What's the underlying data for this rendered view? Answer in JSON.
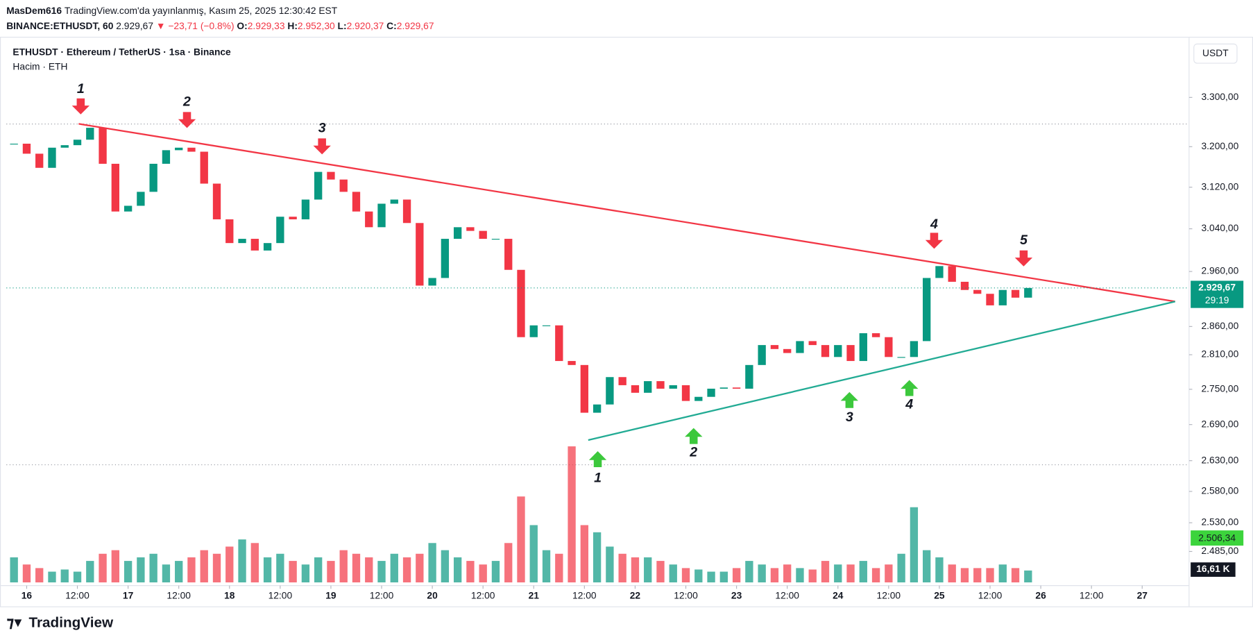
{
  "header": {
    "author": "MasDem616",
    "published": "TradingView.com'da yayınlanmış, Kasım 25, 2025 12:30:42 EST",
    "symbol": "BINANCE:ETHUSDT, 60",
    "last": "2.929,67",
    "change": "▼ −23,71 (−0.8%)",
    "o_label": "O:",
    "o": "2.929,33",
    "h_label": "H:",
    "h": "2.952,30",
    "l_label": "L:",
    "l": "2.920,37",
    "c_label": "C:",
    "c": "2.929,67"
  },
  "chart_data": {
    "type": "candlestick",
    "title": "ETHUSDT · Ethereum / TetherUS · 1sa · Binance",
    "subtitle": "Hacim · ETH",
    "currency": "USDT",
    "close": [
      3206,
      3186,
      3158,
      3198,
      3203,
      3214,
      3238,
      3166,
      3073,
      3084,
      3111,
      3166,
      3193,
      3198,
      3190,
      3127,
      3058,
      3013,
      3021,
      2999,
      3013,
      3063,
      3058,
      3096,
      3150,
      3135,
      3111,
      3073,
      3043,
      3088,
      3096,
      3051,
      2934,
      2948,
      3021,
      3043,
      3036,
      3021,
      3021,
      2963,
      2841,
      2862,
      2862,
      2799,
      2792,
      2710,
      2724,
      2771,
      2757,
      2744,
      2764,
      2751,
      2757,
      2730,
      2737,
      2751,
      2753,
      2751,
      2792,
      2827,
      2820,
      2813,
      2834,
      2827,
      2806,
      2827,
      2799,
      2848,
      2841,
      2806,
      2806,
      2834,
      2948,
      2970,
      2941,
      2926,
      2919,
      2898,
      2926,
      2912,
      2929.67
    ],
    "volume": [
      35,
      25,
      20,
      15,
      18,
      15,
      30,
      40,
      45,
      30,
      35,
      40,
      25,
      30,
      35,
      45,
      40,
      50,
      60,
      55,
      35,
      40,
      30,
      25,
      35,
      30,
      45,
      40,
      35,
      30,
      40,
      35,
      40,
      55,
      45,
      35,
      30,
      25,
      30,
      55,
      120,
      80,
      45,
      40,
      190,
      80,
      70,
      50,
      40,
      35,
      35,
      30,
      25,
      20,
      18,
      15,
      15,
      20,
      30,
      25,
      20,
      25,
      20,
      18,
      30,
      25,
      25,
      30,
      20,
      25,
      40,
      105,
      45,
      35,
      25,
      20,
      20,
      20,
      25,
      20,
      16.61
    ],
    "up_color": "#089981",
    "down_color": "#f23645",
    "log_scale": true,
    "ylim": [
      2435,
      3412
    ],
    "yticks": [
      {
        "value": 3300,
        "label": "3.300,00"
      },
      {
        "value": 3200,
        "label": "3.200,00"
      },
      {
        "value": 3120,
        "label": "3.120,00"
      },
      {
        "value": 3040,
        "label": "3.040,00"
      },
      {
        "value": 2960,
        "label": "2.960,00"
      },
      {
        "value": 2860,
        "label": "2.860,00"
      },
      {
        "value": 2810,
        "label": "2.810,00"
      },
      {
        "value": 2750,
        "label": "2.750,00"
      },
      {
        "value": 2690,
        "label": "2.690,00"
      },
      {
        "value": 2630,
        "label": "2.630,00"
      },
      {
        "value": 2580,
        "label": "2.580,00"
      },
      {
        "value": 2530,
        "label": "2.530,00"
      },
      {
        "value": 2485,
        "label": "2.485,00"
      }
    ],
    "xlim": [
      -0.6,
      92.7
    ],
    "xticks": [
      {
        "value": 1,
        "label": "16"
      },
      {
        "value": 5,
        "label": "12:00"
      },
      {
        "value": 9,
        "label": "17"
      },
      {
        "value": 13,
        "label": "12:00"
      },
      {
        "value": 17,
        "label": "18"
      },
      {
        "value": 21,
        "label": "12:00"
      },
      {
        "value": 25,
        "label": "19"
      },
      {
        "value": 29,
        "label": "12:00"
      },
      {
        "value": 33,
        "label": "20"
      },
      {
        "value": 37,
        "label": "12:00"
      },
      {
        "value": 41,
        "label": "21"
      },
      {
        "value": 45,
        "label": "12:00"
      },
      {
        "value": 49,
        "label": "22"
      },
      {
        "value": 53,
        "label": "12:00"
      },
      {
        "value": 57,
        "label": "23"
      },
      {
        "value": 61,
        "label": "12:00"
      },
      {
        "value": 65,
        "label": "24"
      },
      {
        "value": 69,
        "label": "12:00"
      },
      {
        "value": 73,
        "label": "25"
      },
      {
        "value": 77,
        "label": "12:00"
      },
      {
        "value": 81,
        "label": "26"
      },
      {
        "value": 85,
        "label": "12:00"
      },
      {
        "value": 89,
        "label": "27"
      }
    ],
    "volume_ylim": [
      0,
      200
    ],
    "trendlines": [
      {
        "color": "#f23645",
        "x": [
          5.1,
          91.6
        ],
        "y": [
          3246,
          2905
        ]
      },
      {
        "color": "#22ab94",
        "x": [
          45.3,
          91.6
        ],
        "y": [
          2664,
          2905
        ]
      }
    ],
    "annotations": [
      {
        "text": "1",
        "color": "#f23645"
      },
      {
        "text": "2",
        "color": "#f23645"
      },
      {
        "text": "3",
        "color": "#f23645"
      },
      {
        "text": "4",
        "color": "#f23645"
      },
      {
        "text": "5",
        "color": "#f23645"
      },
      {
        "text": "1",
        "color": "#3cc83c"
      },
      {
        "text": "2",
        "color": "#3cc83c"
      },
      {
        "text": "3",
        "color": "#3cc83c"
      },
      {
        "text": "4",
        "color": "#3cc83c"
      }
    ],
    "price_label": "2.929,67",
    "countdown": "29:19",
    "volume_ma_label": "2.506,34",
    "volume_label": "16,61 K"
  },
  "footer": {
    "brand": "TradingView"
  }
}
